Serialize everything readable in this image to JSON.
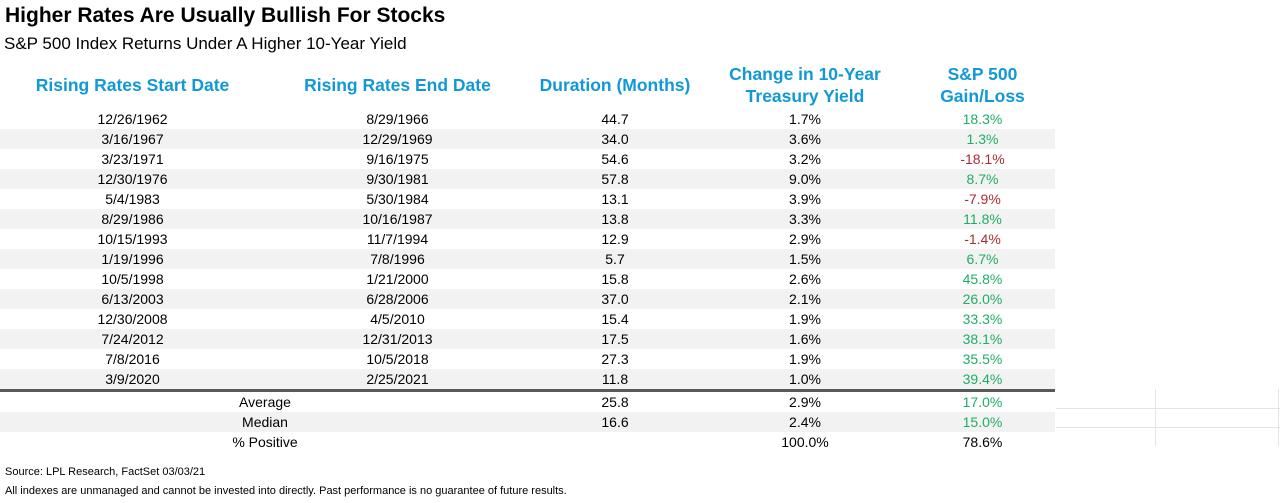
{
  "title": "Higher Rates Are Usually Bullish For Stocks",
  "subtitle": "S&P 500 Index Returns Under A Higher 10-Year Yield",
  "colors": {
    "header_blue": "#1099d6",
    "gain_green": "#1fae66",
    "loss_red": "#ab2c35",
    "row_stripe": "#f2f2f2",
    "separator_dark": "#595959",
    "faint_gridline": "#e4e4e4"
  },
  "chart_data": {
    "type": "table",
    "columns": [
      "Rising Rates Start Date",
      "Rising Rates End Date",
      "Duration (Months)",
      "Change in 10-Year Treasury Yield",
      "S&P 500 Gain/Loss"
    ],
    "rows": [
      {
        "start": "12/26/1962",
        "end": "8/29/1966",
        "duration": "44.7",
        "yield_change": "1.7%",
        "gain": "18.3%",
        "gain_sign": "pos"
      },
      {
        "start": "3/16/1967",
        "end": "12/29/1969",
        "duration": "34.0",
        "yield_change": "3.6%",
        "gain": "1.3%",
        "gain_sign": "pos"
      },
      {
        "start": "3/23/1971",
        "end": "9/16/1975",
        "duration": "54.6",
        "yield_change": "3.2%",
        "gain": "-18.1%",
        "gain_sign": "neg"
      },
      {
        "start": "12/30/1976",
        "end": "9/30/1981",
        "duration": "57.8",
        "yield_change": "9.0%",
        "gain": "8.7%",
        "gain_sign": "pos"
      },
      {
        "start": "5/4/1983",
        "end": "5/30/1984",
        "duration": "13.1",
        "yield_change": "3.9%",
        "gain": "-7.9%",
        "gain_sign": "neg"
      },
      {
        "start": "8/29/1986",
        "end": "10/16/1987",
        "duration": "13.8",
        "yield_change": "3.3%",
        "gain": "11.8%",
        "gain_sign": "pos"
      },
      {
        "start": "10/15/1993",
        "end": "11/7/1994",
        "duration": "12.9",
        "yield_change": "2.9%",
        "gain": "-1.4%",
        "gain_sign": "neg"
      },
      {
        "start": "1/19/1996",
        "end": "7/8/1996",
        "duration": "5.7",
        "yield_change": "1.5%",
        "gain": "6.7%",
        "gain_sign": "pos"
      },
      {
        "start": "10/5/1998",
        "end": "1/21/2000",
        "duration": "15.8",
        "yield_change": "2.6%",
        "gain": "45.8%",
        "gain_sign": "pos"
      },
      {
        "start": "6/13/2003",
        "end": "6/28/2006",
        "duration": "37.0",
        "yield_change": "2.1%",
        "gain": "26.0%",
        "gain_sign": "pos"
      },
      {
        "start": "12/30/2008",
        "end": "4/5/2010",
        "duration": "15.4",
        "yield_change": "1.9%",
        "gain": "33.3%",
        "gain_sign": "pos"
      },
      {
        "start": "7/24/2012",
        "end": "12/31/2013",
        "duration": "17.5",
        "yield_change": "1.6%",
        "gain": "38.1%",
        "gain_sign": "pos"
      },
      {
        "start": "7/8/2016",
        "end": "10/5/2018",
        "duration": "27.3",
        "yield_change": "1.9%",
        "gain": "35.5%",
        "gain_sign": "pos"
      },
      {
        "start": "3/9/2020",
        "end": "2/25/2021",
        "duration": "11.8",
        "yield_change": "1.0%",
        "gain": "39.4%",
        "gain_sign": "pos"
      }
    ],
    "summary_rows": [
      {
        "label": "Average",
        "duration": "25.8",
        "yield_change": "2.9%",
        "gain": "17.0%",
        "gain_sign": "pos"
      },
      {
        "label": "Median",
        "duration": "16.6",
        "yield_change": "2.4%",
        "gain": "15.0%",
        "gain_sign": "pos"
      },
      {
        "label": "% Positive",
        "duration": "",
        "yield_change": "100.0%",
        "gain": "78.6%",
        "gain_sign": "neutral"
      }
    ]
  },
  "footer": {
    "source": "Source: LPL Research, FactSet 03/03/21",
    "disclaimer": "All indexes are unmanaged and cannot be invested into directly. Past performance is no guarantee of future results."
  }
}
